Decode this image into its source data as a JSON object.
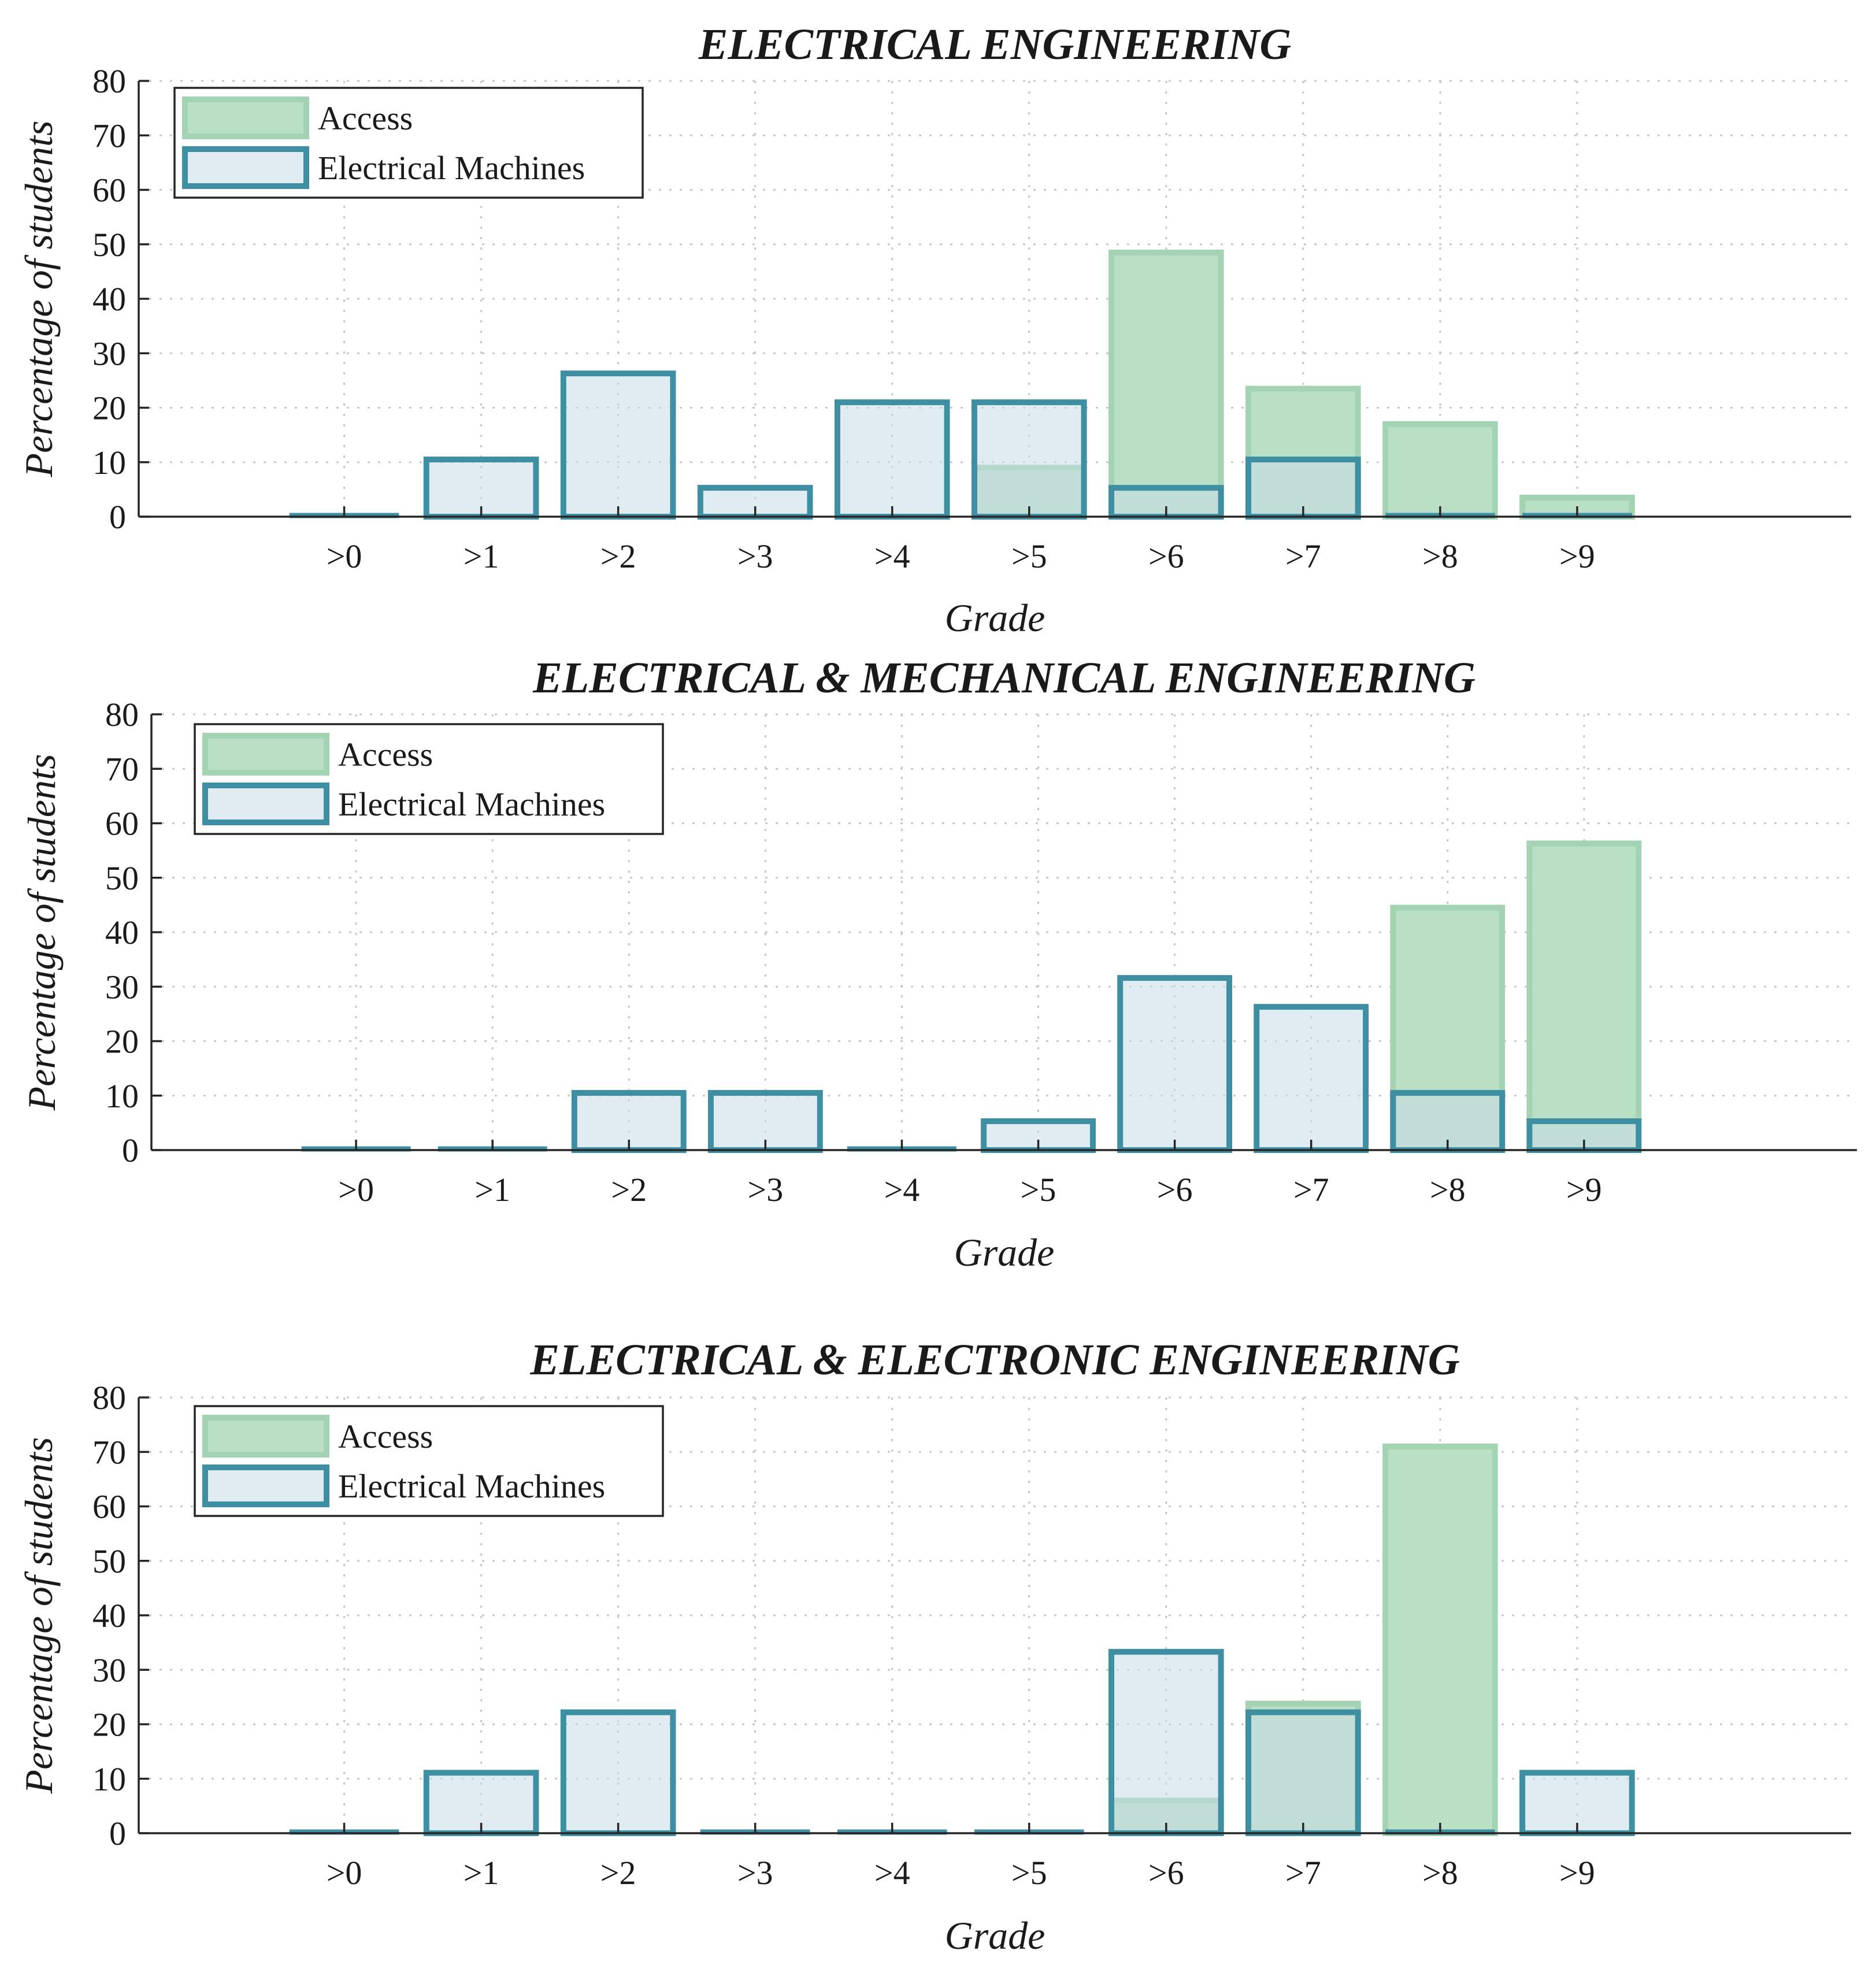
{
  "colors": {
    "access_fill": "#b9e0c5",
    "access_stroke": "#a3d3b2",
    "machines_fill": "#c6dde5",
    "machines_stroke": "#3f8fa3",
    "grid": "#c8c8c8",
    "axis": "#262626"
  },
  "chart_data": [
    {
      "type": "bar",
      "title": "ELECTRICAL ENGINEERING",
      "xlabel": "Grade",
      "ylabel": "Percentage of students",
      "ylim": [
        0,
        80
      ],
      "yticks": [
        "0",
        "10",
        "20",
        "30",
        "40",
        "50",
        "60",
        "70",
        "80"
      ],
      "categories": [
        ">0",
        ">1",
        ">2",
        ">3",
        ">4",
        ">5",
        ">6",
        ">7",
        ">8",
        ">9"
      ],
      "grid": true,
      "legend_position": "top-left",
      "series": [
        {
          "name": "Access",
          "values": [
            0,
            0,
            0,
            0,
            0,
            9,
            48.5,
            23.5,
            17,
            3.5
          ]
        },
        {
          "name": "Electrical Machines",
          "values": [
            0,
            10.5,
            26.3,
            5.3,
            21,
            21,
            5.3,
            10.5,
            0,
            0
          ]
        }
      ]
    },
    {
      "type": "bar",
      "title": "ELECTRICAL & MECHANICAL ENGINEERING",
      "xlabel": "Grade",
      "ylabel": "Percentage of students",
      "ylim": [
        0,
        80
      ],
      "yticks": [
        "0",
        "10",
        "20",
        "30",
        "40",
        "50",
        "60",
        "70",
        "80"
      ],
      "categories": [
        ">0",
        ">1",
        ">2",
        ">3",
        ">4",
        ">5",
        ">6",
        ">7",
        ">8",
        ">9"
      ],
      "grid": true,
      "legend_position": "top-left",
      "series": [
        {
          "name": "Access",
          "values": [
            0,
            0,
            0,
            0,
            0,
            0,
            0,
            0,
            44.5,
            56.3
          ]
        },
        {
          "name": "Electrical Machines",
          "values": [
            0,
            0,
            10.5,
            10.5,
            0,
            5.3,
            31.6,
            26.3,
            10.5,
            5.3
          ]
        }
      ]
    },
    {
      "type": "bar",
      "title": "ELECTRICAL & ELECTRONIC ENGINEERING",
      "xlabel": "Grade",
      "ylabel": "Percentage of students",
      "ylim": [
        0,
        80
      ],
      "yticks": [
        "0",
        "10",
        "20",
        "30",
        "40",
        "50",
        "60",
        "70",
        "80"
      ],
      "categories": [
        ">0",
        ">1",
        ">2",
        ">3",
        ">4",
        ">5",
        ">6",
        ">7",
        ">8",
        ">9"
      ],
      "grid": true,
      "legend_position": "top-left",
      "series": [
        {
          "name": "Access",
          "values": [
            0,
            0,
            0,
            0,
            0,
            0,
            6,
            23.8,
            71,
            0
          ]
        },
        {
          "name": "Electrical Machines",
          "values": [
            0,
            11.1,
            22.2,
            0,
            0,
            0,
            33.3,
            22.2,
            0,
            11.1
          ]
        }
      ]
    }
  ]
}
